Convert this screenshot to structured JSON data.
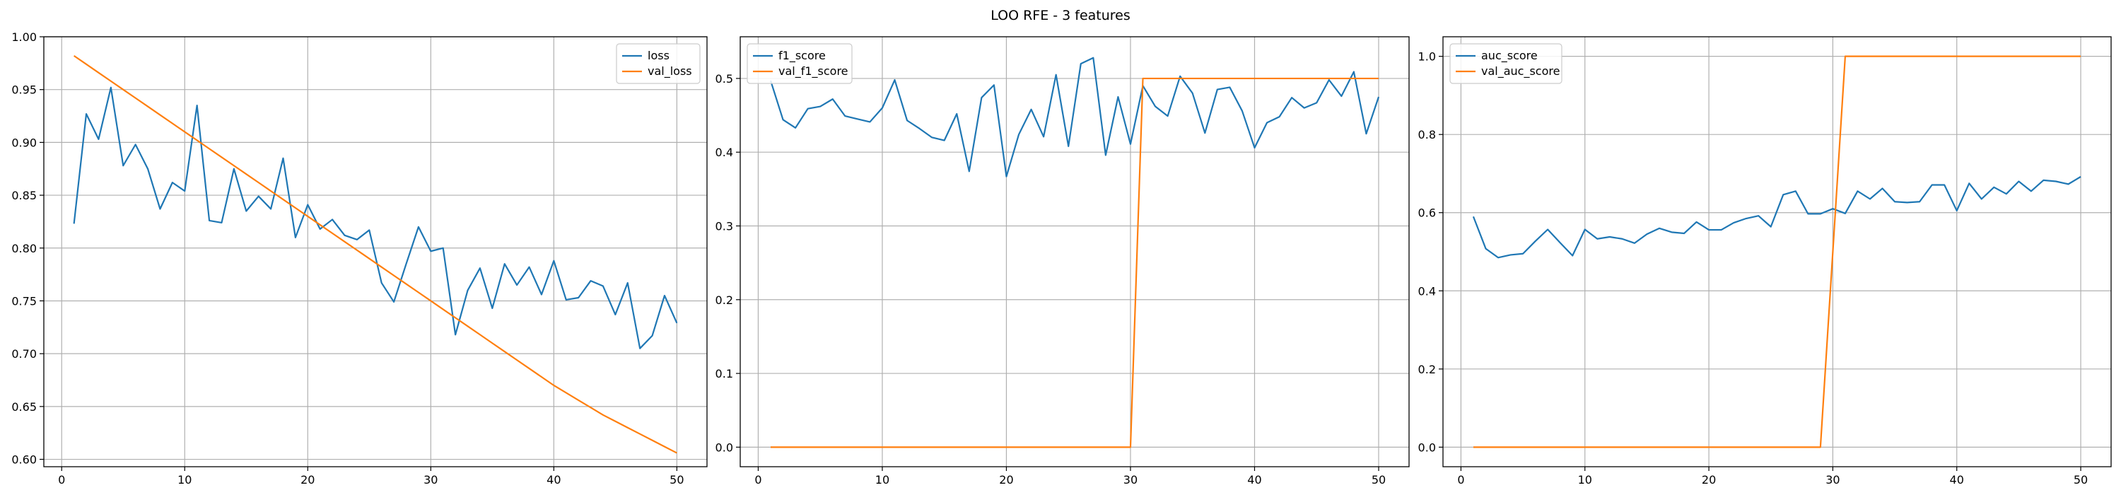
{
  "figure": {
    "title": "LOO RFE - 3 features"
  },
  "colors": {
    "blue": "#1f77b4",
    "orange": "#ff7f0e",
    "grid": "#b0b0b0",
    "axes": "#000000"
  },
  "chart_data": [
    {
      "type": "line",
      "xlim": [
        -1.45,
        52.45
      ],
      "ylim": [
        0.593,
        1.0
      ],
      "xticks": [
        0,
        10,
        20,
        30,
        40,
        50
      ],
      "yticks": [
        0.6,
        0.65,
        0.7,
        0.75,
        0.8,
        0.85,
        0.9,
        0.95,
        1.0
      ],
      "ytick_labels": [
        "0.60",
        "0.65",
        "0.70",
        "0.75",
        "0.80",
        "0.85",
        "0.90",
        "0.95",
        "1.00"
      ],
      "grid": true,
      "legend": "upper right",
      "series": [
        {
          "name": "loss",
          "color": "#1f77b4",
          "x": [
            1,
            2,
            3,
            4,
            5,
            6,
            7,
            8,
            9,
            10,
            11,
            12,
            13,
            14,
            15,
            16,
            17,
            18,
            19,
            20,
            21,
            22,
            23,
            24,
            25,
            26,
            27,
            28,
            29,
            30,
            31,
            32,
            33,
            34,
            35,
            36,
            37,
            38,
            39,
            40,
            41,
            42,
            43,
            44,
            45,
            46,
            47,
            48,
            49,
            50
          ],
          "y": [
            0.823,
            0.927,
            0.903,
            0.952,
            0.878,
            0.898,
            0.875,
            0.837,
            0.862,
            0.854,
            0.935,
            0.826,
            0.824,
            0.875,
            0.835,
            0.849,
            0.837,
            0.885,
            0.81,
            0.841,
            0.818,
            0.827,
            0.812,
            0.808,
            0.817,
            0.767,
            0.749,
            0.785,
            0.82,
            0.797,
            0.8,
            0.718,
            0.76,
            0.781,
            0.743,
            0.785,
            0.765,
            0.782,
            0.756,
            0.788,
            0.751,
            0.753,
            0.769,
            0.764,
            0.737,
            0.767,
            0.705,
            0.717,
            0.755,
            0.729
          ]
        },
        {
          "name": "val_loss",
          "color": "#ff7f0e",
          "x": [
            1,
            2,
            3,
            4,
            5,
            6,
            7,
            8,
            9,
            10,
            11,
            12,
            13,
            14,
            15,
            16,
            17,
            18,
            19,
            20,
            21,
            22,
            23,
            24,
            25,
            26,
            27,
            28,
            29,
            30,
            31,
            32,
            33,
            34,
            35,
            36,
            37,
            38,
            39,
            40,
            41,
            42,
            43,
            44,
            45,
            46,
            47,
            48,
            49,
            50
          ],
          "y": [
            0.982,
            0.974,
            0.966,
            0.958,
            0.95,
            0.942,
            0.934,
            0.926,
            0.918,
            0.91,
            0.902,
            0.894,
            0.886,
            0.878,
            0.87,
            0.862,
            0.854,
            0.846,
            0.838,
            0.83,
            0.822,
            0.814,
            0.806,
            0.798,
            0.79,
            0.782,
            0.774,
            0.766,
            0.758,
            0.75,
            0.742,
            0.734,
            0.726,
            0.718,
            0.71,
            0.702,
            0.694,
            0.686,
            0.678,
            0.67,
            0.663,
            0.656,
            0.649,
            0.642,
            0.636,
            0.63,
            0.624,
            0.618,
            0.612,
            0.606
          ]
        }
      ]
    },
    {
      "type": "line",
      "xlim": [
        -1.45,
        52.45
      ],
      "ylim": [
        -0.0265,
        0.5565
      ],
      "xticks": [
        0,
        10,
        20,
        30,
        40,
        50
      ],
      "yticks": [
        0.0,
        0.1,
        0.2,
        0.3,
        0.4,
        0.5
      ],
      "ytick_labels": [
        "0.0",
        "0.1",
        "0.2",
        "0.3",
        "0.4",
        "0.5"
      ],
      "grid": true,
      "legend": "upper left",
      "series": [
        {
          "name": "f1_score",
          "color": "#1f77b4",
          "x": [
            1,
            2,
            3,
            4,
            5,
            6,
            7,
            8,
            9,
            10,
            11,
            12,
            13,
            14,
            15,
            16,
            17,
            18,
            19,
            20,
            21,
            22,
            23,
            24,
            25,
            26,
            27,
            28,
            29,
            30,
            31,
            32,
            33,
            34,
            35,
            36,
            37,
            38,
            39,
            40,
            41,
            42,
            43,
            44,
            45,
            46,
            47,
            48,
            49,
            50
          ],
          "y": [
            0.497,
            0.444,
            0.433,
            0.459,
            0.462,
            0.472,
            0.449,
            0.445,
            0.441,
            0.46,
            0.498,
            0.443,
            0.432,
            0.42,
            0.416,
            0.452,
            0.374,
            0.474,
            0.491,
            0.367,
            0.424,
            0.458,
            0.421,
            0.505,
            0.408,
            0.52,
            0.528,
            0.396,
            0.475,
            0.411,
            0.49,
            0.462,
            0.449,
            0.503,
            0.48,
            0.426,
            0.485,
            0.488,
            0.456,
            0.406,
            0.44,
            0.448,
            0.474,
            0.46,
            0.467,
            0.498,
            0.476,
            0.509,
            0.425,
            0.475
          ]
        },
        {
          "name": "val_f1_score",
          "color": "#ff7f0e",
          "x": [
            1,
            2,
            3,
            4,
            5,
            6,
            7,
            8,
            9,
            10,
            11,
            12,
            13,
            14,
            15,
            16,
            17,
            18,
            19,
            20,
            21,
            22,
            23,
            24,
            25,
            26,
            27,
            28,
            29,
            30,
            31,
            32,
            33,
            34,
            35,
            36,
            37,
            38,
            39,
            40,
            41,
            42,
            43,
            44,
            45,
            46,
            47,
            48,
            49,
            50
          ],
          "y": [
            0,
            0,
            0,
            0,
            0,
            0,
            0,
            0,
            0,
            0,
            0,
            0,
            0,
            0,
            0,
            0,
            0,
            0,
            0,
            0,
            0,
            0,
            0,
            0,
            0,
            0,
            0,
            0,
            0,
            0,
            0.5,
            0.5,
            0.5,
            0.5,
            0.5,
            0.5,
            0.5,
            0.5,
            0.5,
            0.5,
            0.5,
            0.5,
            0.5,
            0.5,
            0.5,
            0.5,
            0.5,
            0.5,
            0.5,
            0.5
          ]
        }
      ]
    },
    {
      "type": "line",
      "xlim": [
        -1.45,
        52.45
      ],
      "ylim": [
        -0.05,
        1.05
      ],
      "xticks": [
        0,
        10,
        20,
        30,
        40,
        50
      ],
      "yticks": [
        0.0,
        0.2,
        0.4,
        0.6,
        0.8,
        1.0
      ],
      "ytick_labels": [
        "0.0",
        "0.2",
        "0.4",
        "0.6",
        "0.8",
        "1.0"
      ],
      "grid": true,
      "legend": "upper left",
      "series": [
        {
          "name": "auc_score",
          "color": "#1f77b4",
          "x": [
            1,
            2,
            3,
            4,
            5,
            6,
            7,
            8,
            9,
            10,
            11,
            12,
            13,
            14,
            15,
            16,
            17,
            18,
            19,
            20,
            21,
            22,
            23,
            24,
            25,
            26,
            27,
            28,
            29,
            30,
            31,
            32,
            33,
            34,
            35,
            36,
            37,
            38,
            39,
            40,
            41,
            42,
            43,
            44,
            45,
            46,
            47,
            48,
            49,
            50
          ],
          "y": [
            0.59,
            0.508,
            0.485,
            0.492,
            0.495,
            0.527,
            0.557,
            0.523,
            0.49,
            0.557,
            0.533,
            0.538,
            0.533,
            0.522,
            0.545,
            0.56,
            0.55,
            0.547,
            0.576,
            0.556,
            0.556,
            0.574,
            0.585,
            0.592,
            0.564,
            0.646,
            0.655,
            0.597,
            0.597,
            0.61,
            0.598,
            0.655,
            0.635,
            0.662,
            0.628,
            0.626,
            0.628,
            0.671,
            0.671,
            0.605,
            0.675,
            0.635,
            0.665,
            0.648,
            0.68,
            0.655,
            0.683,
            0.68,
            0.673,
            0.692
          ]
        },
        {
          "name": "val_auc_score",
          "color": "#ff7f0e",
          "x": [
            1,
            2,
            3,
            4,
            5,
            6,
            7,
            8,
            9,
            10,
            11,
            12,
            13,
            14,
            15,
            16,
            17,
            18,
            19,
            20,
            21,
            22,
            23,
            24,
            25,
            26,
            27,
            28,
            29,
            30,
            31,
            32,
            33,
            34,
            35,
            36,
            37,
            38,
            39,
            40,
            41,
            42,
            43,
            44,
            45,
            46,
            47,
            48,
            49,
            50
          ],
          "y": [
            0,
            0,
            0,
            0,
            0,
            0,
            0,
            0,
            0,
            0,
            0,
            0,
            0,
            0,
            0,
            0,
            0,
            0,
            0,
            0,
            0,
            0,
            0,
            0,
            0,
            0,
            0,
            0,
            0,
            0.5,
            1,
            1,
            1,
            1,
            1,
            1,
            1,
            1,
            1,
            1,
            1,
            1,
            1,
            1,
            1,
            1,
            1,
            1,
            1,
            1
          ]
        }
      ]
    }
  ]
}
